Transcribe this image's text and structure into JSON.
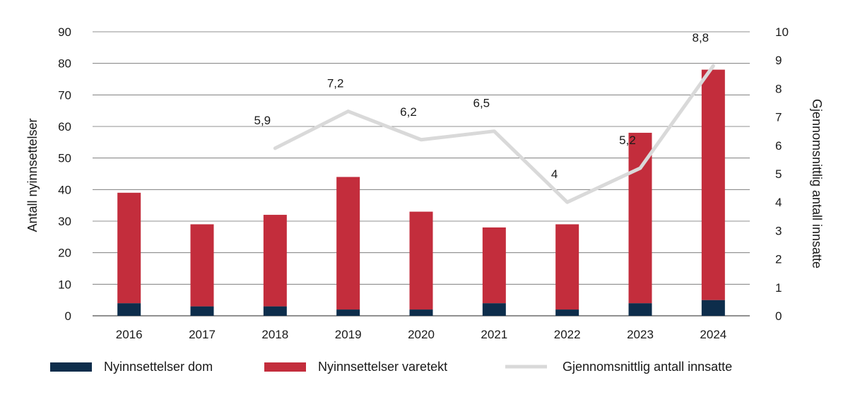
{
  "chart_data": {
    "type": "bar",
    "stacked": true,
    "categories": [
      "2016",
      "2017",
      "2018",
      "2019",
      "2020",
      "2021",
      "2022",
      "2023",
      "2024"
    ],
    "series": [
      {
        "name": "Nyinnsettelser dom",
        "axis": "left",
        "color": "#0d2d4b",
        "values": [
          4,
          3,
          3,
          2,
          2,
          4,
          2,
          4,
          5
        ]
      },
      {
        "name": "Nyinnsettelser varetekt",
        "axis": "left",
        "color": "#c32d3c",
        "values": [
          35,
          26,
          29,
          42,
          31,
          24,
          27,
          54,
          73
        ]
      },
      {
        "name": "Gjennomsnittlig antall innsatte",
        "axis": "right",
        "type": "line",
        "color": "#d9d9d9",
        "x": [
          "2018",
          "2019",
          "2020",
          "2021",
          "2022",
          "2023",
          "2024"
        ],
        "values": [
          5.9,
          7.2,
          6.2,
          6.5,
          4,
          5.2,
          8.8
        ],
        "labels": [
          "5,9",
          "7,2",
          "6,2",
          "6,5",
          "4",
          "5,2",
          "8,8"
        ]
      }
    ],
    "ylabel": "Antall nyinnsettelser",
    "ylabel_right": "Gjennomsnittlig antall innsatte",
    "ylim": [
      0,
      90
    ],
    "yticks": [
      "0",
      "10",
      "20",
      "30",
      "40",
      "50",
      "60",
      "70",
      "80",
      "90"
    ],
    "ylim_right": [
      0,
      10
    ],
    "yticks_right": [
      "0",
      "1",
      "2",
      "3",
      "4",
      "5",
      "6",
      "7",
      "8",
      "9",
      "10"
    ],
    "grid": true,
    "legend_position": "bottom"
  }
}
